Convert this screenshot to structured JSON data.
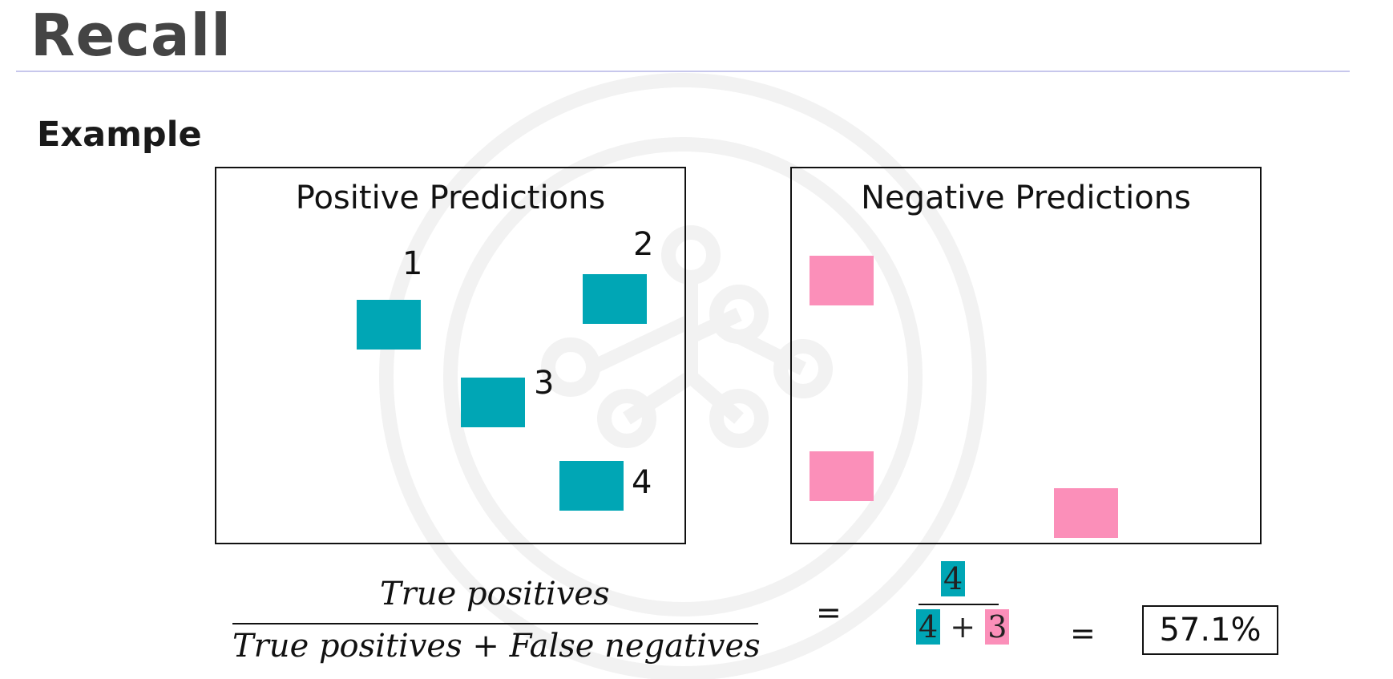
{
  "slide": {
    "title": "Recall",
    "subtitle": "Example"
  },
  "positive_panel": {
    "title": "Positive Predictions",
    "items": [
      {
        "label": "1",
        "class": "true-positive"
      },
      {
        "label": "2",
        "class": "true-positive"
      },
      {
        "label": "3",
        "class": "true-positive"
      },
      {
        "label": "4",
        "class": "true-positive"
      }
    ]
  },
  "negative_panel": {
    "title": "Negative Predictions",
    "items": [
      {
        "class": "false-negative"
      },
      {
        "class": "false-negative"
      },
      {
        "class": "false-negative"
      }
    ]
  },
  "formula": {
    "numerator": "True positives",
    "denominator": "True positives + False negatives",
    "equals": "=",
    "calc_numerator": "4",
    "calc_denominator_tp": "4",
    "calc_plus": "+",
    "calc_denominator_fn": "3",
    "result": "57.1%"
  },
  "colors": {
    "true_positive": "#00a6b5",
    "false_negative": "#fb8fb9",
    "title_text": "#444444",
    "rule": "#c7c7ec"
  }
}
